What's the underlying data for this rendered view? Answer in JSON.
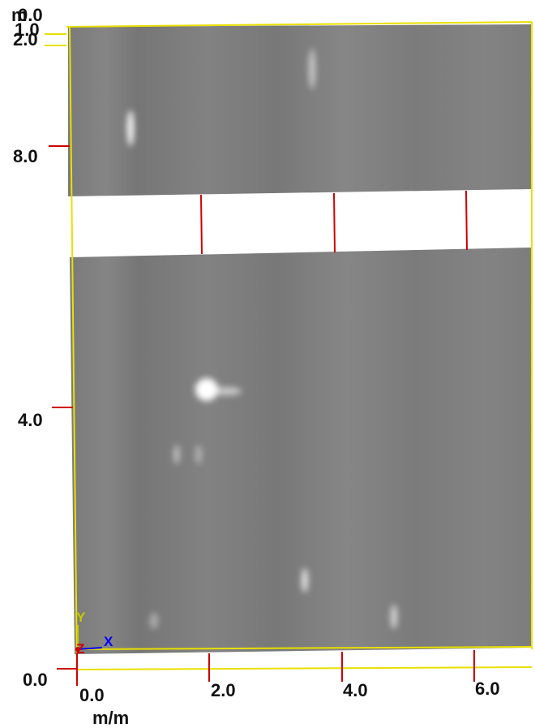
{
  "y_axis": {
    "unit": "m",
    "top_labels": [
      "0.0",
      "1.0",
      "2.0"
    ],
    "labels": [
      "8.0",
      "4.0",
      "0.0"
    ]
  },
  "x_axis": {
    "labels": [
      "0.0",
      "2.0",
      "4.0",
      "6.0"
    ],
    "unit": "m/m"
  },
  "axes_gizmo": {
    "x": "X",
    "y": "Y",
    "z": "Z"
  }
}
